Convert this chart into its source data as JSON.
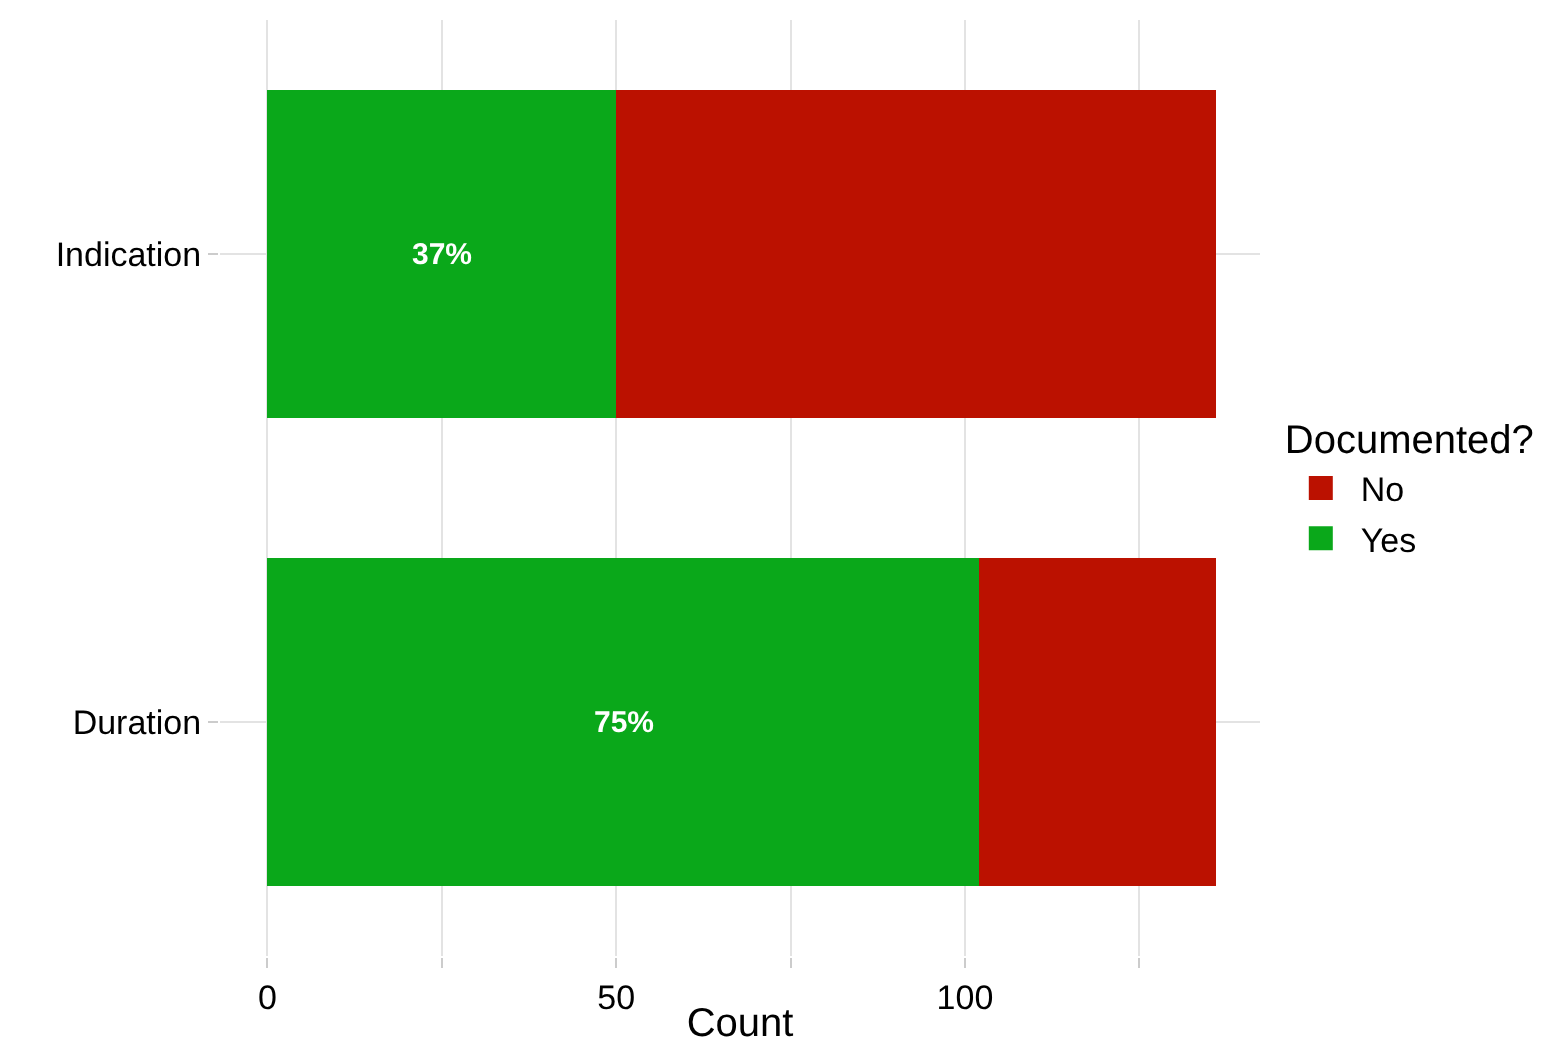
{
  "chart_data": {
    "type": "bar",
    "orientation": "horizontal",
    "stacked": true,
    "categories": [
      "Indication",
      "Duration"
    ],
    "series": [
      {
        "name": "Yes",
        "color": "#0aa81a",
        "values": [
          50,
          102
        ]
      },
      {
        "name": "No",
        "color": "#bb1100",
        "values": [
          86,
          34
        ]
      }
    ],
    "annotations": [
      "37%",
      "75%"
    ],
    "xlabel": "Count",
    "legend_title": "Documented?",
    "legend": "right",
    "grid": true,
    "xlim": [
      -6.8,
      142.3
    ],
    "xticks": [
      0,
      {
        "value": 25,
        "label": null
      },
      50,
      {
        "value": 75,
        "label": null
      },
      100,
      {
        "value": 125,
        "label": null
      }
    ]
  }
}
